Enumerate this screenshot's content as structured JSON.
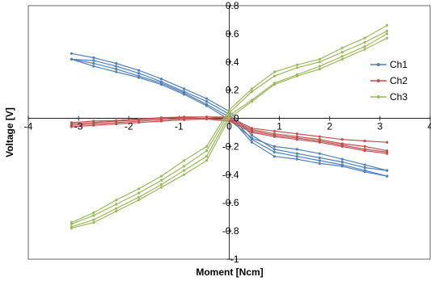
{
  "chart_data": {
    "type": "line",
    "xlabel": "Moment [Ncm]",
    "ylabel": "Voltage [V]",
    "xlim": [
      -4,
      4
    ],
    "ylim": [
      -1,
      0.8
    ],
    "x_ticks": [
      -4,
      -3,
      -2,
      -1,
      0,
      1,
      2,
      3,
      4
    ],
    "x_tick_labels": [
      "-4",
      "-3",
      "-2",
      "-1",
      "0",
      "1",
      "2",
      "3",
      "4"
    ],
    "y_ticks": [
      -1,
      -0.8,
      -0.6,
      -0.4,
      -0.2,
      0,
      0.2,
      0.4,
      0.6,
      0.8
    ],
    "y_tick_labels": [
      "-1",
      "-0.8",
      "-0.6",
      "-0.4",
      "-0.2",
      "0",
      "0.2",
      "0.4",
      "0.6",
      "0.8"
    ],
    "grid": false,
    "legend_position": "right",
    "series": [
      {
        "name": "Ch1",
        "color": "#4F81BD",
        "lines": [
          {
            "x": [
              -3.14,
              -2.7,
              -2.25,
              -1.8,
              -1.35,
              -0.9,
              -0.45,
              0,
              0.45,
              0.9,
              1.35,
              1.8,
              2.25,
              2.7,
              3.14
            ],
            "y": [
              0.46,
              0.43,
              0.39,
              0.34,
              0.28,
              0.21,
              0.14,
              0.05,
              -0.12,
              -0.22,
              -0.25,
              -0.28,
              -0.31,
              -0.35,
              -0.37
            ]
          },
          {
            "x": [
              -3.14,
              -2.7,
              -2.25,
              -1.8,
              -1.35,
              -0.9,
              -0.45,
              0,
              0.45,
              0.9,
              1.35,
              1.8,
              2.25,
              2.7,
              3.14
            ],
            "y": [
              0.42,
              0.41,
              0.37,
              0.32,
              0.26,
              0.19,
              0.12,
              0.03,
              -0.15,
              -0.24,
              -0.27,
              -0.3,
              -0.33,
              -0.37,
              -0.41
            ]
          },
          {
            "x": [
              -3.14,
              -2.7,
              -2.25,
              -1.8,
              -1.35,
              -0.9,
              -0.45,
              0,
              0.45,
              0.9,
              1.35,
              1.8,
              2.25,
              2.7,
              3.14
            ],
            "y": [
              0.42,
              0.39,
              0.35,
              0.3,
              0.25,
              0.18,
              0.1,
              0.01,
              -0.17,
              -0.27,
              -0.29,
              -0.32,
              -0.34,
              -0.38,
              -0.41
            ]
          },
          {
            "x": [
              -3.14,
              -2.7,
              -2.25,
              -1.8,
              -1.35,
              -0.9,
              -0.45,
              0,
              0.45,
              0.9,
              1.35,
              1.8,
              2.25,
              2.7,
              3.14
            ],
            "y": [
              0.42,
              0.37,
              0.33,
              0.29,
              0.24,
              0.17,
              0.09,
              -0.01,
              -0.14,
              -0.2,
              -0.22,
              -0.25,
              -0.29,
              -0.33,
              -0.37
            ]
          }
        ]
      },
      {
        "name": "Ch2",
        "color": "#C0504D",
        "lines": [
          {
            "x": [
              -3.14,
              -2.7,
              -2.25,
              -1.8,
              -1.35,
              -0.9,
              -0.45,
              0,
              0.45,
              0.9,
              1.35,
              1.8,
              2.25,
              2.7,
              3.14
            ],
            "y": [
              -0.03,
              -0.02,
              -0.015,
              -0.005,
              0.005,
              0.01,
              0.01,
              0.01,
              -0.07,
              -0.09,
              -0.11,
              -0.13,
              -0.15,
              -0.16,
              -0.17
            ]
          },
          {
            "x": [
              -3.14,
              -2.7,
              -2.25,
              -1.8,
              -1.35,
              -0.9,
              -0.45,
              0,
              0.45,
              0.9,
              1.35,
              1.8,
              2.25,
              2.7,
              3.14
            ],
            "y": [
              -0.04,
              -0.03,
              -0.02,
              -0.01,
              0.0,
              0.005,
              0.01,
              0.0,
              -0.08,
              -0.11,
              -0.13,
              -0.15,
              -0.18,
              -0.2,
              -0.23
            ]
          },
          {
            "x": [
              -3.14,
              -2.7,
              -2.25,
              -1.8,
              -1.35,
              -0.9,
              -0.45,
              0,
              0.45,
              0.9,
              1.35,
              1.8,
              2.25,
              2.7,
              3.14
            ],
            "y": [
              -0.05,
              -0.04,
              -0.03,
              -0.02,
              -0.01,
              0.0,
              0.0,
              -0.01,
              -0.09,
              -0.12,
              -0.14,
              -0.16,
              -0.19,
              -0.22,
              -0.24
            ]
          },
          {
            "x": [
              -3.14,
              -2.7,
              -2.25,
              -1.8,
              -1.35,
              -0.9,
              -0.45,
              0,
              0.45,
              0.9,
              1.35,
              1.8,
              2.25,
              2.7,
              3.14
            ],
            "y": [
              -0.06,
              -0.05,
              -0.04,
              -0.03,
              -0.02,
              -0.01,
              -0.005,
              -0.02,
              -0.1,
              -0.13,
              -0.15,
              -0.17,
              -0.2,
              -0.23,
              -0.25
            ]
          }
        ]
      },
      {
        "name": "Ch3",
        "color": "#9BBB59",
        "lines": [
          {
            "x": [
              -3.14,
              -2.7,
              -2.25,
              -1.8,
              -1.35,
              -0.9,
              -0.45,
              0,
              0.45,
              0.9,
              1.35,
              1.8,
              2.25,
              2.7,
              3.14
            ],
            "y": [
              -0.74,
              -0.67,
              -0.58,
              -0.5,
              -0.41,
              -0.3,
              -0.2,
              0.06,
              0.21,
              0.33,
              0.38,
              0.42,
              0.5,
              0.57,
              0.66
            ]
          },
          {
            "x": [
              -3.14,
              -2.7,
              -2.25,
              -1.8,
              -1.35,
              -0.9,
              -0.45,
              0,
              0.45,
              0.9,
              1.35,
              1.8,
              2.25,
              2.7,
              3.14
            ],
            "y": [
              -0.75,
              -0.69,
              -0.61,
              -0.53,
              -0.44,
              -0.34,
              -0.23,
              0.04,
              0.19,
              0.3,
              0.36,
              0.4,
              0.47,
              0.54,
              0.62
            ]
          },
          {
            "x": [
              -3.14,
              -2.7,
              -2.25,
              -1.8,
              -1.35,
              -0.9,
              -0.45,
              0,
              0.45,
              0.9,
              1.35,
              1.8,
              2.25,
              2.7,
              3.14
            ],
            "y": [
              -0.77,
              -0.72,
              -0.64,
              -0.56,
              -0.47,
              -0.37,
              -0.27,
              0.02,
              0.13,
              0.25,
              0.31,
              0.37,
              0.44,
              0.51,
              0.6
            ]
          },
          {
            "x": [
              -3.14,
              -2.7,
              -2.25,
              -1.8,
              -1.35,
              -0.9,
              -0.45,
              0,
              0.45,
              0.9,
              1.35,
              1.8,
              2.25,
              2.7,
              3.14
            ],
            "y": [
              -0.78,
              -0.74,
              -0.66,
              -0.58,
              -0.49,
              -0.4,
              -0.3,
              0.0,
              0.12,
              0.24,
              0.3,
              0.35,
              0.42,
              0.49,
              0.57
            ]
          }
        ]
      }
    ]
  }
}
